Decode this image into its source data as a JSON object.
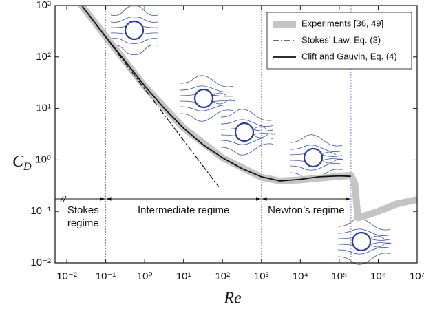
{
  "chart_data": {
    "type": "line",
    "xlabel": "Re",
    "ylabel": "C",
    "ylabel_sub": "D",
    "log_x": true,
    "log_y": true,
    "xlim": [
      0.005,
      10000000
    ],
    "ylim": [
      0.01,
      1000
    ],
    "xticks": [
      {
        "value": 0.01,
        "label": "10⁻²"
      },
      {
        "value": 0.1,
        "label": "10⁻¹"
      },
      {
        "value": 1,
        "label": "10⁰"
      },
      {
        "value": 10,
        "label": "10¹"
      },
      {
        "value": 100,
        "label": "10²"
      },
      {
        "value": 1000,
        "label": "10³"
      },
      {
        "value": 10000,
        "label": "10⁴"
      },
      {
        "value": 100000,
        "label": "10⁵"
      },
      {
        "value": 1000000,
        "label": "10⁶"
      },
      {
        "value": 10000000,
        "label": "10⁷"
      }
    ],
    "yticks": [
      {
        "value": 0.01,
        "label": "10⁻²"
      },
      {
        "value": 0.1,
        "label": "10⁻¹"
      },
      {
        "value": 1,
        "label": "10⁰"
      },
      {
        "value": 10,
        "label": "10¹"
      },
      {
        "value": 100,
        "label": "10²"
      },
      {
        "value": 1000,
        "label": "10³"
      }
    ],
    "legend": "upper right",
    "series": [
      {
        "name": "Experiments [36, 49]",
        "color": "#c4c4c4",
        "line_style": "band",
        "x": [
          0.02,
          0.1,
          1,
          10,
          100,
          1000,
          3000,
          10000,
          100000,
          200000,
          250000,
          300000,
          400000,
          1000000,
          3000000,
          10000000
        ],
        "values": [
          1200,
          250,
          27,
          4.2,
          1.1,
          0.46,
          0.39,
          0.41,
          0.48,
          0.5,
          0.35,
          0.075,
          0.08,
          0.1,
          0.14,
          0.17
        ]
      },
      {
        "name": "Stokes’ Law, Eq. (3)",
        "color": "#111111",
        "line_style": "dashdot",
        "x": [
          0.025,
          80
        ],
        "values": [
          960,
          0.3
        ]
      },
      {
        "name": "Clift and Gauvin, Eq. (4)",
        "color": "#111111",
        "line_style": "solid",
        "x": [
          0.025,
          0.1,
          1,
          3.16,
          10,
          31.6,
          100,
          316,
          1000,
          3000,
          10000,
          30000,
          100000,
          200000
        ],
        "values": [
          970,
          247,
          27.6,
          10.1,
          4.15,
          1.98,
          1.1,
          0.68,
          0.47,
          0.39,
          0.42,
          0.47,
          0.49,
          0.48
        ]
      }
    ],
    "regimes": [
      {
        "label": [
          "Stokes",
          "regime"
        ],
        "x": [
          0.005,
          0.1
        ]
      },
      {
        "label": [
          "Intermediate regime"
        ],
        "x": [
          0.1,
          1000
        ]
      },
      {
        "label": [
          "Newton’s regime"
        ],
        "x": [
          1000,
          200000
        ]
      }
    ]
  }
}
